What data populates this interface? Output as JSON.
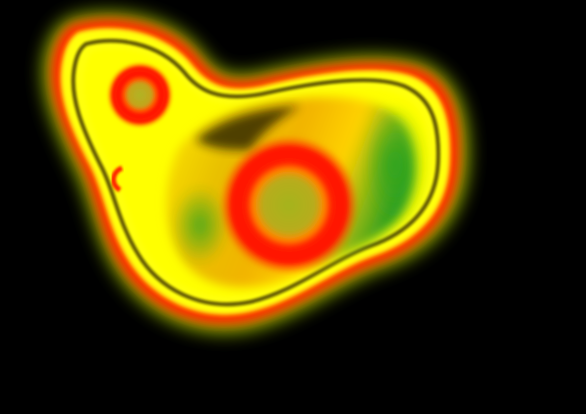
{
  "image": {
    "description_free": true,
    "colors": {
      "background": "#000000",
      "outer_glow": "#c8e600",
      "halo_yellow": "#ffff00",
      "ring_red": "#ff1a00",
      "ring_orange": "#ff7a00",
      "core_yellow_green": "#a8b820",
      "interior_green": "#3aa81e",
      "interior_amber": "#f0b400",
      "shadow_band": "#1a1400"
    }
  }
}
